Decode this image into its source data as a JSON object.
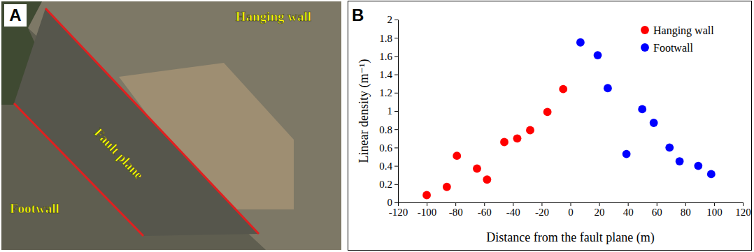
{
  "photo": {
    "letter": "A",
    "labels": {
      "hanging_wall": "Hanging wall",
      "fault_plane": "Fault plane",
      "footwall": "Footwall"
    }
  },
  "chart_data": {
    "type": "scatter",
    "letter": "B",
    "x_label": "Distance from the fault plane (m)",
    "y_label": "Linear density (m⁻¹)",
    "series": [
      {
        "name": "Hanging wall",
        "color": "#ff0000",
        "marker": "circle",
        "x": [
          -100,
          -86,
          -79,
          -65,
          -58,
          -46,
          -37,
          -28,
          -16,
          -5
        ],
        "values": [
          0.08,
          0.17,
          0.51,
          0.37,
          0.25,
          0.66,
          0.7,
          0.79,
          0.99,
          1.24
        ]
      },
      {
        "name": "Footwall",
        "color": "#0000ff",
        "marker": "circle",
        "x": [
          7,
          19,
          26,
          39,
          50,
          58,
          69,
          76,
          89,
          98
        ],
        "values": [
          1.75,
          1.61,
          1.25,
          0.53,
          1.02,
          0.87,
          0.6,
          0.45,
          0.4,
          0.31
        ]
      }
    ],
    "xlim": [
      -120,
      120
    ],
    "xticks": [
      -120,
      -100,
      -80,
      -60,
      -40,
      -20,
      0,
      20,
      40,
      60,
      80,
      100,
      120
    ],
    "ylim": [
      0,
      2
    ],
    "yticks": [
      0,
      0.2,
      0.4,
      0.6,
      0.8,
      1,
      1.2,
      1.4,
      1.6,
      1.8,
      2
    ],
    "grid": false,
    "legend": "upper right"
  }
}
